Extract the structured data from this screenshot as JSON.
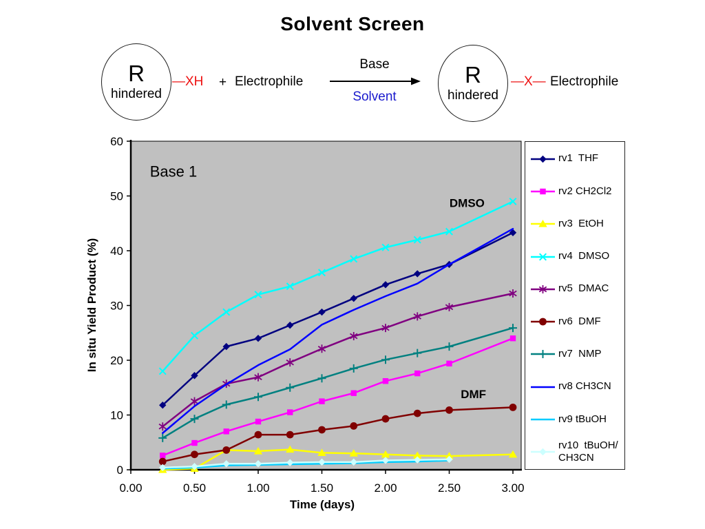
{
  "slide": {
    "title": "Solvent Screen"
  },
  "scheme": {
    "left_group": {
      "r": "R",
      "hindered": "hindered"
    },
    "bond_left": "—XH",
    "plus": "+",
    "electrophile": "Electrophile",
    "arrow_top": "Base",
    "arrow_bottom": "Solvent",
    "right_group": {
      "r": "R",
      "hindered": "hindered"
    },
    "bond_right": "—X—",
    "product": "Electrophile",
    "colors": {
      "bond_red": "#ee1111",
      "solvent_blue": "#1a1acd",
      "arrow_black": "#000000"
    }
  },
  "chart_data": {
    "type": "line",
    "xlabel": "Time (days)",
    "ylabel": "In situ Yield Product (%)",
    "xlim": [
      0,
      3
    ],
    "ylim": [
      0,
      60
    ],
    "xticks": [
      "0.00",
      "0.50",
      "1.00",
      "1.50",
      "2.00",
      "2.50",
      "3.00"
    ],
    "yticks": [
      0,
      10,
      20,
      30,
      40,
      50,
      60
    ],
    "grid": "off",
    "plot_bg": "#c0c0c0",
    "legend_position": "right",
    "annotations": [
      {
        "text": "Base 1",
        "x": 0.15,
        "y": 53.5,
        "size": 22,
        "weight": 400,
        "anchor": "start"
      },
      {
        "text": "DMSO",
        "x": 2.64,
        "y": 48.0,
        "size": 17,
        "weight": 700,
        "anchor": "middle"
      },
      {
        "text": "DMF",
        "x": 2.69,
        "y": 13.1,
        "size": 17,
        "weight": 700,
        "anchor": "middle"
      }
    ],
    "x": [
      0.25,
      0.5,
      0.75,
      1.0,
      1.25,
      1.5,
      1.75,
      2.0,
      2.25,
      2.5,
      3.0
    ],
    "series": [
      {
        "label": "rv1  THF",
        "color": "#000080",
        "marker": "diamond",
        "values": [
          11.8,
          17.2,
          22.5,
          24.0,
          26.4,
          28.8,
          31.3,
          33.8,
          35.8,
          37.5,
          43.3
        ]
      },
      {
        "label": "rv2 CH2Cl2",
        "color": "#ff00ff",
        "marker": "square",
        "values": [
          2.6,
          4.9,
          7.0,
          8.8,
          10.5,
          12.5,
          14.0,
          16.2,
          17.6,
          19.4,
          24.0
        ]
      },
      {
        "label": "rv3  EtOH",
        "color": "#ffff00",
        "marker": "triangle",
        "values": [
          0.0,
          0.2,
          3.6,
          3.4,
          3.7,
          3.1,
          3.0,
          2.8,
          2.6,
          2.5,
          2.8
        ]
      },
      {
        "label": "rv4  DMSO",
        "color": "#00ffff",
        "marker": "x",
        "values": [
          18.0,
          24.5,
          28.8,
          32.0,
          33.5,
          36.0,
          38.5,
          40.6,
          42.0,
          43.5,
          49.0
        ]
      },
      {
        "label": "rv5  DMAC",
        "color": "#800080",
        "marker": "asterisk",
        "values": [
          7.9,
          12.5,
          15.7,
          16.9,
          19.6,
          22.1,
          24.4,
          25.9,
          28.0,
          29.7,
          32.2
        ]
      },
      {
        "label": "rv6  DMF",
        "color": "#800000",
        "marker": "circle",
        "values": [
          1.5,
          2.8,
          3.6,
          6.4,
          6.4,
          7.3,
          8.0,
          9.3,
          10.3,
          10.9,
          11.4
        ]
      },
      {
        "label": "rv7  NMP",
        "color": "#008080",
        "marker": "plus",
        "values": [
          5.8,
          9.3,
          11.9,
          13.3,
          15.0,
          16.7,
          18.5,
          20.1,
          21.3,
          22.5,
          25.9
        ]
      },
      {
        "label": "rv8 CH3CN",
        "color": "#0000ff",
        "marker": "none",
        "values": [
          6.7,
          11.6,
          15.6,
          19.1,
          22.0,
          26.5,
          29.2,
          31.7,
          34.0,
          37.5,
          44.0
        ]
      },
      {
        "label": "rv9 tBuOH",
        "color": "#00ccff",
        "marker": "none",
        "values": [
          0.2,
          0.4,
          0.8,
          0.9,
          1.0,
          1.1,
          1.2,
          1.4,
          1.5,
          1.7,
          null
        ]
      },
      {
        "label": "rv10  tBuOH/\nCH3CN",
        "color": "#ccffff",
        "marker": "diamond",
        "values": [
          0.4,
          0.6,
          1.1,
          1.1,
          1.3,
          1.4,
          1.4,
          1.7,
          1.8,
          1.9,
          null
        ]
      }
    ]
  }
}
